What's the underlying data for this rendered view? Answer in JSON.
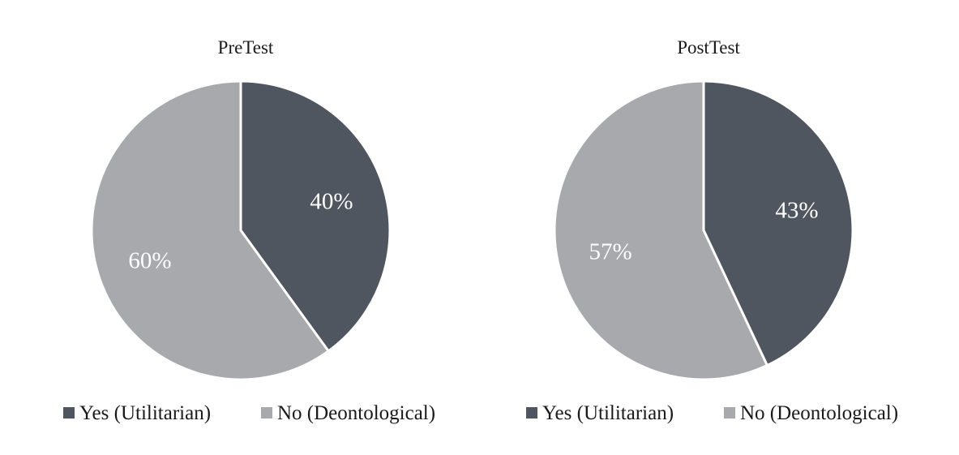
{
  "chart_data": [
    {
      "type": "pie",
      "title": "PreTest",
      "slices": [
        {
          "name": "Yes (Utilitarian)",
          "value": 40,
          "label": "40%",
          "color": "#50565f"
        },
        {
          "name": "No (Deontological)",
          "value": 60,
          "label": "60%",
          "color": "#a7a9ad"
        }
      ],
      "legend": {
        "position": "bottom",
        "entries": [
          "Yes (Utilitarian)",
          "No (Deontological)"
        ]
      },
      "start": "12 o'clock",
      "direction": "clockwise"
    },
    {
      "type": "pie",
      "title": "PostTest",
      "slices": [
        {
          "name": "Yes (Utilitarian)",
          "value": 43,
          "label": "43%",
          "color": "#50565f"
        },
        {
          "name": "No (Deontological)",
          "value": 57,
          "label": "57%",
          "color": "#a7a9ad"
        }
      ],
      "legend": {
        "position": "bottom",
        "entries": [
          "Yes (Utilitarian)",
          "No (Deontological)"
        ]
      },
      "start": "12 o'clock",
      "direction": "clockwise"
    }
  ]
}
